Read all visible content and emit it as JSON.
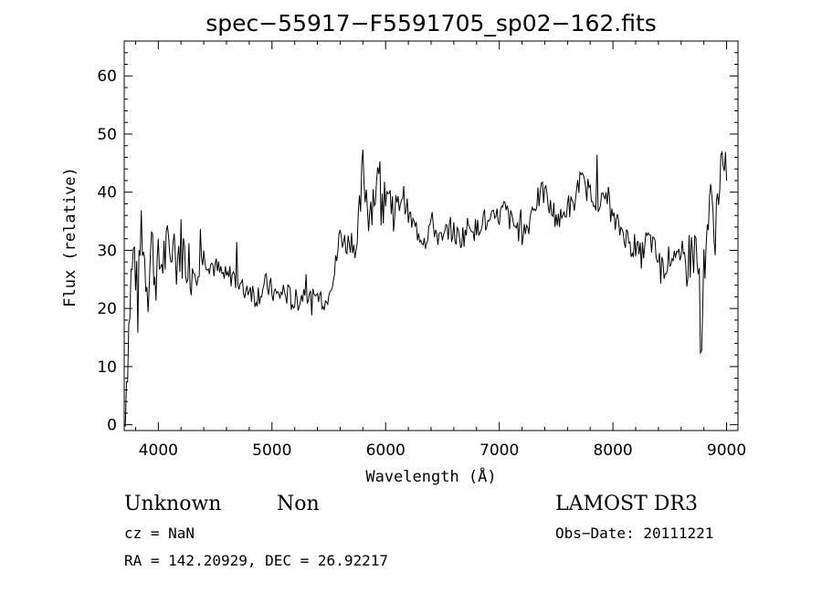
{
  "chart_data": {
    "type": "line",
    "title": "spec−55917−F5591705_sp02−162.fits",
    "xlabel": "Wavelength (Å)",
    "ylabel": "Flux (relative)",
    "xlim": [
      3700,
      9100
    ],
    "ylim": [
      -1,
      66
    ],
    "xticks": [
      4000,
      5000,
      6000,
      7000,
      8000,
      9000
    ],
    "yticks": [
      0,
      10,
      20,
      30,
      40,
      50,
      60
    ],
    "grid": false,
    "series": [
      {
        "x": [
          3700,
          3730,
          3760,
          3790,
          3820,
          3850,
          3880,
          3910,
          3940,
          3970,
          4000,
          4050,
          4100,
          4150,
          4200,
          4250,
          4300,
          4350,
          4400,
          4450,
          4500,
          4550,
          4600,
          4650,
          4700,
          4750,
          4800,
          4850,
          4900,
          4950,
          5000,
          5050,
          5100,
          5150,
          5200,
          5250,
          5300,
          5350,
          5400,
          5450,
          5480,
          5500,
          5550,
          5600,
          5650,
          5700,
          5750,
          5800,
          5850,
          5900,
          5950,
          6000,
          6050,
          6100,
          6150,
          6200,
          6250,
          6300,
          6350,
          6400,
          6450,
          6500,
          6550,
          6600,
          6650,
          6700,
          6750,
          6800,
          6850,
          6900,
          6950,
          7000,
          7050,
          7100,
          7150,
          7200,
          7250,
          7300,
          7350,
          7400,
          7450,
          7500,
          7550,
          7600,
          7650,
          7700,
          7750,
          7800,
          7850,
          7900,
          7950,
          8000,
          8050,
          8100,
          8150,
          8200,
          8250,
          8300,
          8350,
          8400,
          8450,
          8500,
          8550,
          8600,
          8650,
          8700,
          8750,
          8780,
          8800,
          8850,
          8900,
          8950,
          9000
        ],
        "y": [
          0,
          12,
          25,
          30,
          20,
          35,
          28,
          24,
          32,
          26,
          27,
          29,
          30,
          28,
          31,
          28,
          27,
          30,
          29,
          28,
          27,
          26,
          25,
          26,
          24,
          23,
          24,
          22,
          23,
          24,
          23,
          22,
          23,
          22,
          21,
          22,
          23,
          21,
          22,
          22,
          21,
          24,
          26,
          33,
          31,
          32,
          30,
          44,
          37,
          40,
          42,
          41,
          38,
          37,
          40,
          36,
          34,
          33,
          32,
          35,
          33,
          31,
          34,
          33,
          32,
          33,
          35,
          33,
          36,
          34,
          35,
          36,
          37,
          35,
          34,
          33,
          34,
          38,
          39,
          40,
          37,
          36,
          35,
          38,
          37,
          42,
          41,
          40,
          39,
          38,
          40,
          35,
          34,
          33,
          31,
          30,
          29,
          32,
          31,
          28,
          27,
          29,
          30,
          27,
          28,
          30,
          29,
          10,
          28,
          38,
          34,
          45,
          42
        ]
      }
    ]
  },
  "footer": {
    "object_class": "Unknown",
    "subclass": "Non",
    "survey": "LAMOST DR3",
    "redshift": "cz = NaN",
    "obs_date": "Obs−Date: 20111221",
    "coords": "RA = 142.20929, DEC =  26.92217"
  }
}
